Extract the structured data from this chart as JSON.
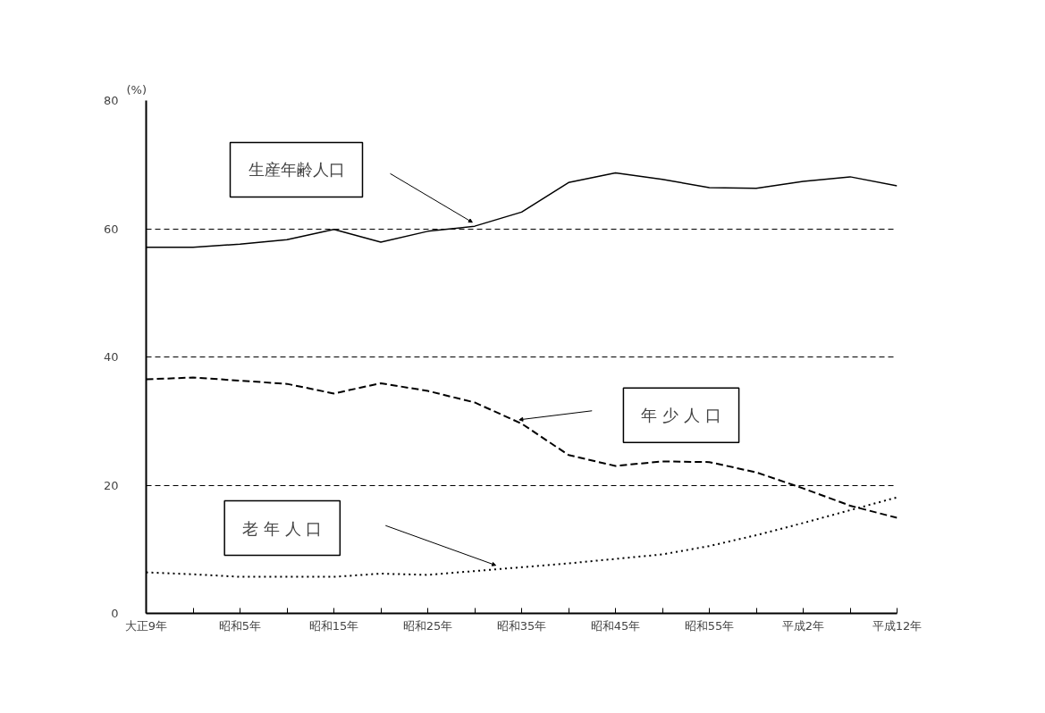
{
  "chart_data": {
    "type": "line",
    "ylabel": "(%)",
    "categories": [
      "大正9年",
      null,
      "昭和5年",
      null,
      "昭和15年",
      null,
      "昭和25年",
      null,
      "昭和35年",
      null,
      "昭和45年",
      null,
      "昭和55年",
      null,
      "平成2年",
      null,
      "平成12年"
    ],
    "series": [
      {
        "name": "生産年齢人口",
        "color": "#000000",
        "line_style": "solid",
        "values": [
          57.1,
          57.1,
          57.6,
          58.3,
          59.9,
          57.9,
          59.6,
          60.4,
          62.6,
          67.2,
          68.7,
          67.7,
          66.4,
          66.3,
          67.4,
          68.1,
          66.7
        ]
      },
      {
        "name": "年 少 人 口",
        "color": "#000000",
        "line_style": "dashed",
        "values": [
          36.5,
          36.8,
          36.3,
          35.8,
          34.3,
          35.9,
          34.7,
          32.9,
          29.6,
          24.7,
          23.0,
          23.7,
          23.6,
          22.0,
          19.5,
          16.8,
          14.9
        ]
      },
      {
        "name": "老 年 人 口",
        "color": "#000000",
        "line_style": "dotted",
        "values": [
          6.4,
          6.1,
          5.7,
          5.7,
          5.7,
          6.2,
          6.0,
          6.6,
          7.2,
          7.8,
          8.5,
          9.2,
          10.5,
          12.2,
          14.1,
          16.1,
          18.1
        ]
      }
    ],
    "ylim": [
      0,
      80
    ],
    "yticks": [
      0,
      20,
      40,
      60,
      80
    ],
    "grid": "y"
  }
}
